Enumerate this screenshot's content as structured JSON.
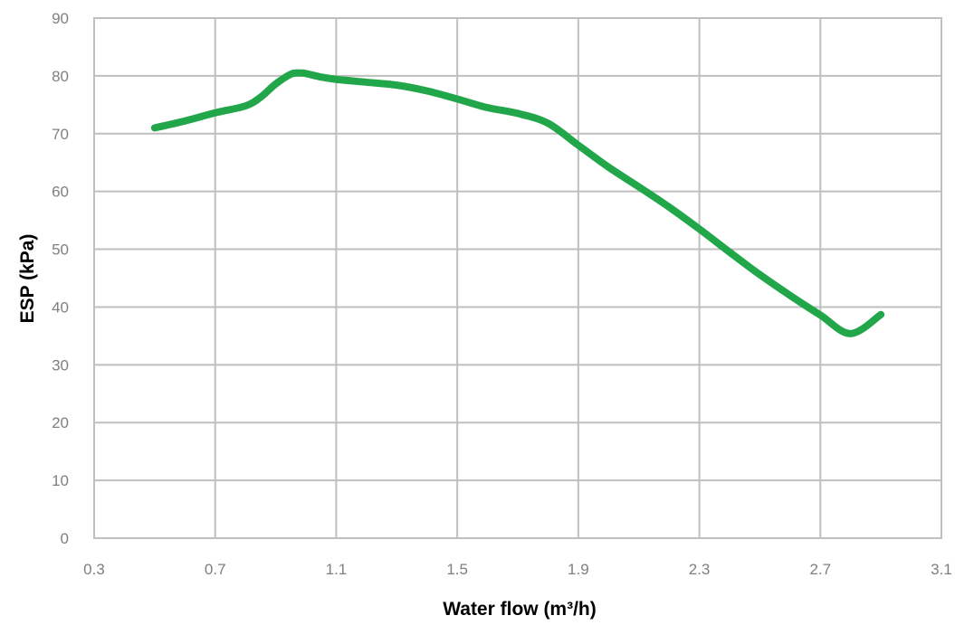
{
  "chart_data": {
    "type": "line",
    "title": "",
    "xlabel": "Water flow (m³/h)",
    "ylabel": "ESP (kPa)",
    "xlim": [
      0.3,
      3.1
    ],
    "ylim": [
      0,
      90
    ],
    "x_ticks": [
      "0.3",
      "0.7",
      "1.1",
      "1.5",
      "1.9",
      "2.3",
      "2.7",
      "3.1"
    ],
    "y_ticks": [
      "0",
      "10",
      "20",
      "30",
      "40",
      "50",
      "60",
      "70",
      "80",
      "90"
    ],
    "grid": true,
    "legend": "none",
    "series": [
      {
        "color": "#22a64a",
        "x": [
          0.5,
          0.6,
          0.7,
          0.8,
          0.85,
          0.9,
          0.95,
          0.98,
          1.0,
          1.05,
          1.1,
          1.2,
          1.3,
          1.4,
          1.5,
          1.6,
          1.7,
          1.8,
          1.9,
          2.0,
          2.1,
          2.2,
          2.3,
          2.4,
          2.5,
          2.6,
          2.7,
          2.8,
          2.9
        ],
        "y": [
          71,
          72.2,
          73.6,
          74.8,
          76.3,
          78.6,
          80.3,
          80.5,
          80.4,
          79.8,
          79.4,
          78.9,
          78.4,
          77.4,
          76.0,
          74.5,
          73.5,
          71.8,
          68.0,
          64.2,
          60.8,
          57.3,
          53.5,
          49.5,
          45.6,
          42.0,
          38.6,
          35.4,
          38.7
        ]
      }
    ]
  }
}
